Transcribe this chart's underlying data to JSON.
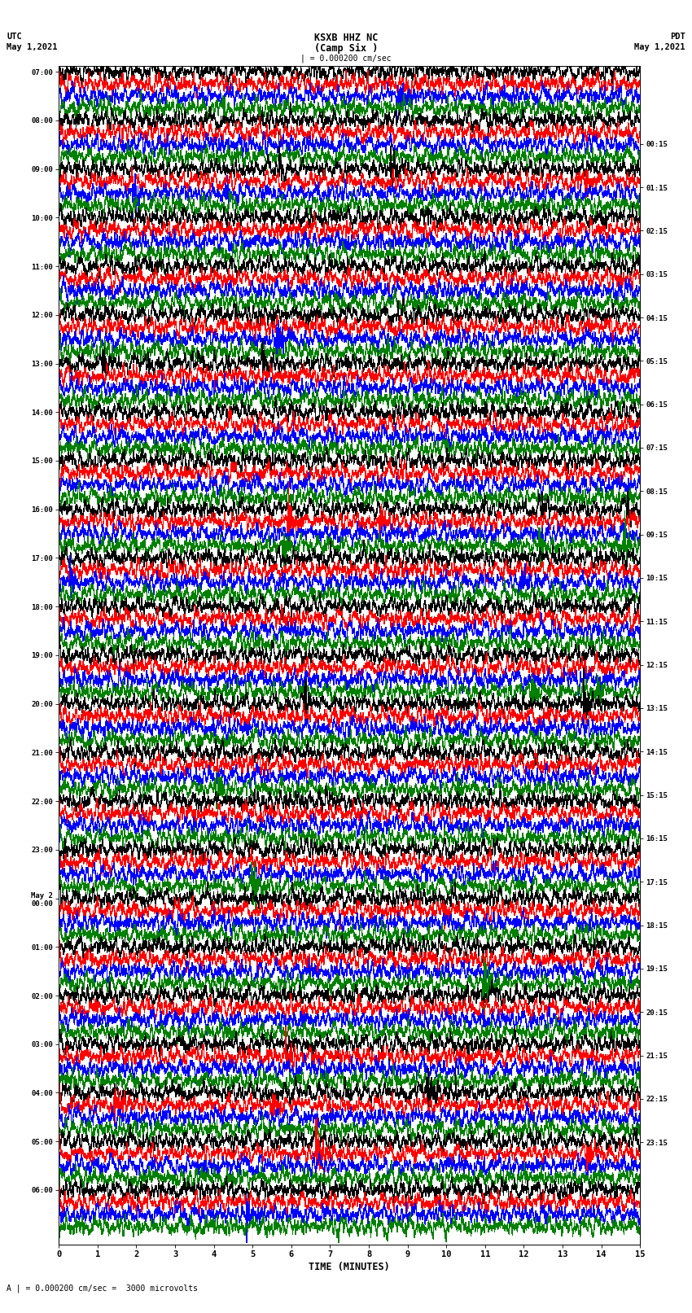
{
  "title_center1": "KSXB HHZ NC",
  "title_center2": "(Camp Six )",
  "title_left1": "UTC",
  "title_left2": "May 1,2021",
  "title_right1": "PDT",
  "title_right2": "May 1,2021",
  "scale_label": "| = 0.000200 cm/sec",
  "bottom_label": "A | = 0.000200 cm/sec =  3000 microvolts",
  "xlabel": "TIME (MINUTES)",
  "xticks": [
    0,
    1,
    2,
    3,
    4,
    5,
    6,
    7,
    8,
    9,
    10,
    11,
    12,
    13,
    14,
    15
  ],
  "time_minutes": 15,
  "background_color": "#ffffff",
  "trace_colors_cycle": [
    "black",
    "red",
    "blue",
    "green"
  ],
  "utc_labels": [
    "07:00",
    "08:00",
    "09:00",
    "10:00",
    "11:00",
    "12:00",
    "13:00",
    "14:00",
    "15:00",
    "16:00",
    "17:00",
    "18:00",
    "19:00",
    "20:00",
    "21:00",
    "22:00",
    "23:00",
    "May 2\n00:00",
    "01:00",
    "02:00",
    "03:00",
    "04:00",
    "05:00",
    "06:00"
  ],
  "pdt_labels": [
    "00:15",
    "01:15",
    "02:15",
    "03:15",
    "04:15",
    "05:15",
    "06:15",
    "07:15",
    "08:15",
    "09:15",
    "10:15",
    "11:15",
    "12:15",
    "13:15",
    "14:15",
    "15:15",
    "16:15",
    "17:15",
    "18:15",
    "19:15",
    "20:15",
    "21:15",
    "22:15",
    "23:15"
  ],
  "num_rows": 96,
  "num_hours": 24,
  "traces_per_hour": 4,
  "figsize": [
    8.5,
    16.13
  ],
  "dpi": 100
}
